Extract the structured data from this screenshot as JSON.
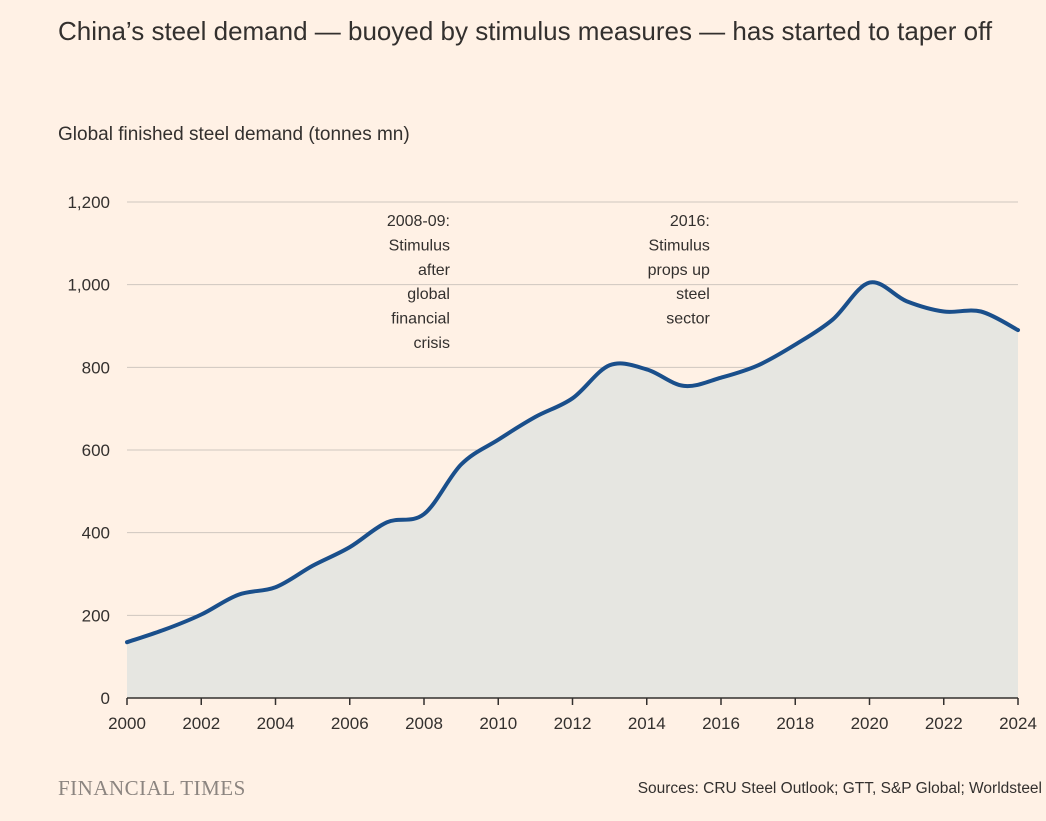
{
  "chart_data": {
    "type": "area",
    "title": "China’s steel demand — buoyed by stimulus measures — has started to taper off",
    "subtitle": "Global finished steel demand (tonnes mn)",
    "xlabel": "",
    "ylabel": "",
    "x": [
      2000,
      2001,
      2002,
      2003,
      2004,
      2005,
      2006,
      2007,
      2008,
      2009,
      2010,
      2011,
      2012,
      2013,
      2014,
      2015,
      2016,
      2017,
      2018,
      2019,
      2020,
      2021,
      2022,
      2023,
      2024
    ],
    "series": [
      {
        "name": "",
        "color": "#1a4f8b",
        "fill": "#e6e6e1",
        "values": [
          135,
          165,
          202,
          250,
          268,
          320,
          365,
          425,
          445,
          565,
          625,
          680,
          725,
          805,
          795,
          755,
          775,
          805,
          855,
          915,
          1005,
          960,
          935,
          935,
          890
        ]
      }
    ],
    "xlim": [
      2000,
      2024
    ],
    "ylim": [
      0,
      1200
    ],
    "x_ticks": [
      2000,
      2002,
      2004,
      2006,
      2008,
      2010,
      2012,
      2014,
      2016,
      2018,
      2020,
      2022,
      2024
    ],
    "x_tick_labels": [
      "2000",
      "2002",
      "2004",
      "2006",
      "2008",
      "2010",
      "2012",
      "2014",
      "2016",
      "2018",
      "2020",
      "2022",
      "2024"
    ],
    "y_ticks": [
      0,
      200,
      400,
      600,
      800,
      1000,
      1200
    ],
    "y_tick_labels": [
      "0",
      "200",
      "400",
      "600",
      "800",
      "1,000",
      "1,200"
    ],
    "grid": true,
    "gridline_color": "#cfc7bf",
    "annotations": [
      {
        "x": 2008.7,
        "lines": [
          "2008-09:",
          "Stimulus",
          "after",
          "global",
          "financial",
          "crisis"
        ]
      },
      {
        "x": 2015.7,
        "lines": [
          "2016:",
          "Stimulus",
          "props up",
          "steel",
          "sector"
        ]
      }
    ]
  },
  "footer": {
    "brand": "FINANCIAL TIMES",
    "source": "Sources: CRU Steel Outlook; GTT, S&P Global; Worldsteel"
  }
}
